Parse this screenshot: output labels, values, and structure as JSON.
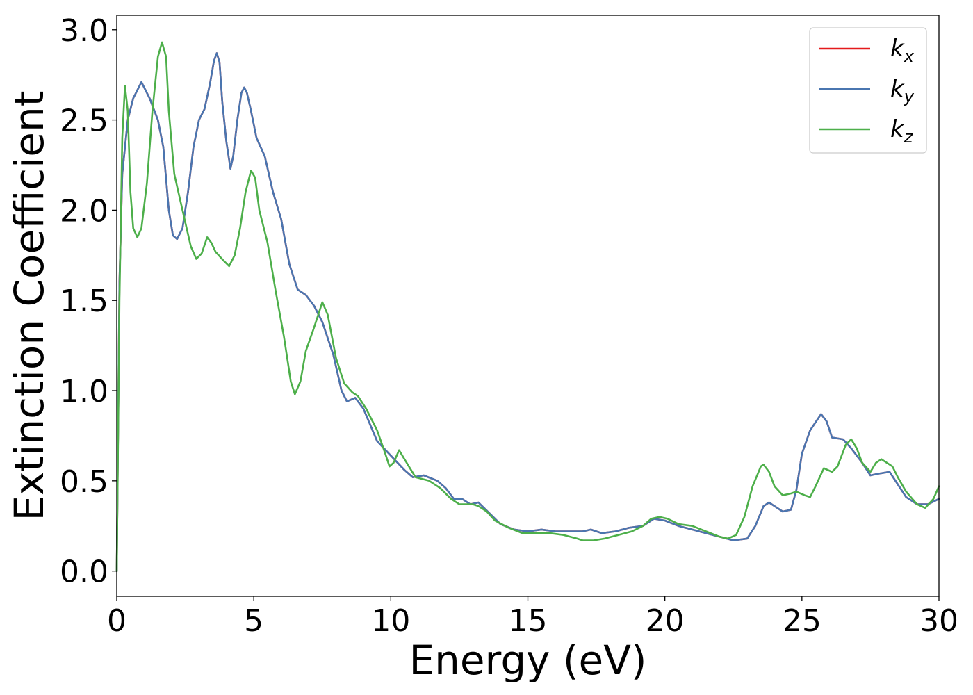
{
  "chart_data": {
    "type": "line",
    "title": "",
    "xlabel": "Energy (eV)",
    "ylabel": "Extinction Coefficient",
    "xlim": [
      0,
      30
    ],
    "ylim": [
      -0.14,
      3.08
    ],
    "xticks": [
      0,
      5,
      10,
      15,
      20,
      25,
      30
    ],
    "xtick_labels": [
      "0",
      "5",
      "10",
      "15",
      "20",
      "25",
      "30"
    ],
    "yticks": [
      0.0,
      0.5,
      1.0,
      1.5,
      2.0,
      2.5,
      3.0
    ],
    "ytick_labels": [
      "0.0",
      "0.5",
      "1.0",
      "1.5",
      "2.0",
      "2.5",
      "3.0"
    ],
    "grid": false,
    "legend_position": "top-right",
    "series": [
      {
        "name": "k",
        "subscript": "x",
        "color": "#e41a1c",
        "points": [
          [
            0,
            0
          ],
          [
            0.1,
            1.6
          ],
          [
            0.2,
            2.2
          ],
          [
            0.4,
            2.5
          ],
          [
            0.6,
            2.62
          ],
          [
            0.9,
            2.71
          ],
          [
            1.2,
            2.62
          ],
          [
            1.5,
            2.5
          ],
          [
            1.7,
            2.35
          ],
          [
            1.9,
            2.0
          ],
          [
            2.05,
            1.86
          ],
          [
            2.2,
            1.84
          ],
          [
            2.4,
            1.9
          ],
          [
            2.6,
            2.1
          ],
          [
            2.8,
            2.35
          ],
          [
            3.0,
            2.5
          ],
          [
            3.2,
            2.56
          ],
          [
            3.4,
            2.7
          ],
          [
            3.55,
            2.83
          ],
          [
            3.65,
            2.87
          ],
          [
            3.75,
            2.82
          ],
          [
            3.85,
            2.6
          ],
          [
            4.0,
            2.38
          ],
          [
            4.15,
            2.23
          ],
          [
            4.25,
            2.3
          ],
          [
            4.4,
            2.5
          ],
          [
            4.55,
            2.65
          ],
          [
            4.65,
            2.68
          ],
          [
            4.75,
            2.65
          ],
          [
            4.9,
            2.55
          ],
          [
            5.1,
            2.4
          ],
          [
            5.4,
            2.3
          ],
          [
            5.7,
            2.1
          ],
          [
            6.0,
            1.95
          ],
          [
            6.3,
            1.7
          ],
          [
            6.6,
            1.56
          ],
          [
            6.9,
            1.53
          ],
          [
            7.2,
            1.47
          ],
          [
            7.5,
            1.38
          ],
          [
            7.9,
            1.2
          ],
          [
            8.2,
            1.0
          ],
          [
            8.4,
            0.94
          ],
          [
            8.7,
            0.96
          ],
          [
            9.0,
            0.9
          ],
          [
            9.5,
            0.72
          ],
          [
            10.0,
            0.64
          ],
          [
            10.5,
            0.56
          ],
          [
            10.8,
            0.52
          ],
          [
            11.2,
            0.53
          ],
          [
            11.7,
            0.5
          ],
          [
            12.0,
            0.46
          ],
          [
            12.3,
            0.4
          ],
          [
            12.6,
            0.4
          ],
          [
            12.9,
            0.37
          ],
          [
            13.2,
            0.38
          ],
          [
            13.6,
            0.32
          ],
          [
            14.0,
            0.26
          ],
          [
            14.5,
            0.23
          ],
          [
            15.0,
            0.22
          ],
          [
            15.5,
            0.23
          ],
          [
            16.0,
            0.22
          ],
          [
            16.5,
            0.22
          ],
          [
            17.0,
            0.22
          ],
          [
            17.3,
            0.23
          ],
          [
            17.7,
            0.21
          ],
          [
            18.2,
            0.22
          ],
          [
            18.7,
            0.24
          ],
          [
            19.2,
            0.25
          ],
          [
            19.6,
            0.29
          ],
          [
            20.0,
            0.28
          ],
          [
            20.5,
            0.25
          ],
          [
            21.0,
            0.23
          ],
          [
            21.5,
            0.21
          ],
          [
            22.0,
            0.19
          ],
          [
            22.5,
            0.17
          ],
          [
            23.0,
            0.18
          ],
          [
            23.3,
            0.25
          ],
          [
            23.6,
            0.36
          ],
          [
            23.8,
            0.38
          ],
          [
            24.0,
            0.36
          ],
          [
            24.3,
            0.33
          ],
          [
            24.6,
            0.34
          ],
          [
            24.8,
            0.45
          ],
          [
            25.0,
            0.65
          ],
          [
            25.3,
            0.78
          ],
          [
            25.7,
            0.87
          ],
          [
            25.9,
            0.83
          ],
          [
            26.1,
            0.74
          ],
          [
            26.5,
            0.73
          ],
          [
            26.8,
            0.68
          ],
          [
            27.2,
            0.6
          ],
          [
            27.5,
            0.53
          ],
          [
            27.8,
            0.54
          ],
          [
            28.2,
            0.55
          ],
          [
            28.5,
            0.48
          ],
          [
            28.8,
            0.41
          ],
          [
            29.2,
            0.37
          ],
          [
            29.6,
            0.37
          ],
          [
            30.0,
            0.4
          ]
        ]
      },
      {
        "name": "k",
        "subscript": "y",
        "color": "#4a76b0",
        "points": [
          [
            0,
            0
          ],
          [
            0.1,
            1.6
          ],
          [
            0.2,
            2.2
          ],
          [
            0.4,
            2.5
          ],
          [
            0.6,
            2.62
          ],
          [
            0.9,
            2.71
          ],
          [
            1.2,
            2.62
          ],
          [
            1.5,
            2.5
          ],
          [
            1.7,
            2.35
          ],
          [
            1.9,
            2.0
          ],
          [
            2.05,
            1.86
          ],
          [
            2.2,
            1.84
          ],
          [
            2.4,
            1.9
          ],
          [
            2.6,
            2.1
          ],
          [
            2.8,
            2.35
          ],
          [
            3.0,
            2.5
          ],
          [
            3.2,
            2.56
          ],
          [
            3.4,
            2.7
          ],
          [
            3.55,
            2.83
          ],
          [
            3.65,
            2.87
          ],
          [
            3.75,
            2.82
          ],
          [
            3.85,
            2.6
          ],
          [
            4.0,
            2.38
          ],
          [
            4.15,
            2.23
          ],
          [
            4.25,
            2.3
          ],
          [
            4.4,
            2.5
          ],
          [
            4.55,
            2.65
          ],
          [
            4.65,
            2.68
          ],
          [
            4.75,
            2.65
          ],
          [
            4.9,
            2.55
          ],
          [
            5.1,
            2.4
          ],
          [
            5.4,
            2.3
          ],
          [
            5.7,
            2.1
          ],
          [
            6.0,
            1.95
          ],
          [
            6.3,
            1.7
          ],
          [
            6.6,
            1.56
          ],
          [
            6.9,
            1.53
          ],
          [
            7.2,
            1.47
          ],
          [
            7.5,
            1.38
          ],
          [
            7.9,
            1.2
          ],
          [
            8.2,
            1.0
          ],
          [
            8.4,
            0.94
          ],
          [
            8.7,
            0.96
          ],
          [
            9.0,
            0.9
          ],
          [
            9.5,
            0.72
          ],
          [
            10.0,
            0.64
          ],
          [
            10.5,
            0.56
          ],
          [
            10.8,
            0.52
          ],
          [
            11.2,
            0.53
          ],
          [
            11.7,
            0.5
          ],
          [
            12.0,
            0.46
          ],
          [
            12.3,
            0.4
          ],
          [
            12.6,
            0.4
          ],
          [
            12.9,
            0.37
          ],
          [
            13.2,
            0.38
          ],
          [
            13.6,
            0.32
          ],
          [
            14.0,
            0.26
          ],
          [
            14.5,
            0.23
          ],
          [
            15.0,
            0.22
          ],
          [
            15.5,
            0.23
          ],
          [
            16.0,
            0.22
          ],
          [
            16.5,
            0.22
          ],
          [
            17.0,
            0.22
          ],
          [
            17.3,
            0.23
          ],
          [
            17.7,
            0.21
          ],
          [
            18.2,
            0.22
          ],
          [
            18.7,
            0.24
          ],
          [
            19.2,
            0.25
          ],
          [
            19.6,
            0.29
          ],
          [
            20.0,
            0.28
          ],
          [
            20.5,
            0.25
          ],
          [
            21.0,
            0.23
          ],
          [
            21.5,
            0.21
          ],
          [
            22.0,
            0.19
          ],
          [
            22.5,
            0.17
          ],
          [
            23.0,
            0.18
          ],
          [
            23.3,
            0.25
          ],
          [
            23.6,
            0.36
          ],
          [
            23.8,
            0.38
          ],
          [
            24.0,
            0.36
          ],
          [
            24.3,
            0.33
          ],
          [
            24.6,
            0.34
          ],
          [
            24.8,
            0.45
          ],
          [
            25.0,
            0.65
          ],
          [
            25.3,
            0.78
          ],
          [
            25.7,
            0.87
          ],
          [
            25.9,
            0.83
          ],
          [
            26.1,
            0.74
          ],
          [
            26.5,
            0.73
          ],
          [
            26.8,
            0.68
          ],
          [
            27.2,
            0.6
          ],
          [
            27.5,
            0.53
          ],
          [
            27.8,
            0.54
          ],
          [
            28.2,
            0.55
          ],
          [
            28.5,
            0.48
          ],
          [
            28.8,
            0.41
          ],
          [
            29.2,
            0.37
          ],
          [
            29.6,
            0.37
          ],
          [
            30.0,
            0.4
          ]
        ]
      },
      {
        "name": "k",
        "subscript": "z",
        "color": "#4daf4a",
        "points": [
          [
            0,
            0
          ],
          [
            0.1,
            1.5
          ],
          [
            0.2,
            2.4
          ],
          [
            0.3,
            2.69
          ],
          [
            0.4,
            2.55
          ],
          [
            0.5,
            2.1
          ],
          [
            0.6,
            1.9
          ],
          [
            0.75,
            1.85
          ],
          [
            0.9,
            1.9
          ],
          [
            1.1,
            2.15
          ],
          [
            1.3,
            2.55
          ],
          [
            1.5,
            2.85
          ],
          [
            1.65,
            2.93
          ],
          [
            1.8,
            2.85
          ],
          [
            1.9,
            2.55
          ],
          [
            2.1,
            2.2
          ],
          [
            2.4,
            2.0
          ],
          [
            2.7,
            1.8
          ],
          [
            2.9,
            1.73
          ],
          [
            3.1,
            1.76
          ],
          [
            3.3,
            1.85
          ],
          [
            3.45,
            1.82
          ],
          [
            3.6,
            1.77
          ],
          [
            3.9,
            1.72
          ],
          [
            4.1,
            1.69
          ],
          [
            4.3,
            1.75
          ],
          [
            4.5,
            1.9
          ],
          [
            4.7,
            2.1
          ],
          [
            4.9,
            2.22
          ],
          [
            5.05,
            2.18
          ],
          [
            5.2,
            2.0
          ],
          [
            5.5,
            1.82
          ],
          [
            5.8,
            1.55
          ],
          [
            6.1,
            1.3
          ],
          [
            6.35,
            1.05
          ],
          [
            6.5,
            0.98
          ],
          [
            6.7,
            1.05
          ],
          [
            6.9,
            1.22
          ],
          [
            7.2,
            1.35
          ],
          [
            7.5,
            1.49
          ],
          [
            7.7,
            1.42
          ],
          [
            8.0,
            1.18
          ],
          [
            8.3,
            1.04
          ],
          [
            8.6,
            0.99
          ],
          [
            8.8,
            0.97
          ],
          [
            9.1,
            0.9
          ],
          [
            9.5,
            0.78
          ],
          [
            9.8,
            0.65
          ],
          [
            9.95,
            0.58
          ],
          [
            10.1,
            0.6
          ],
          [
            10.3,
            0.67
          ],
          [
            10.5,
            0.62
          ],
          [
            10.9,
            0.52
          ],
          [
            11.4,
            0.5
          ],
          [
            11.8,
            0.46
          ],
          [
            12.2,
            0.4
          ],
          [
            12.5,
            0.37
          ],
          [
            13.0,
            0.37
          ],
          [
            13.2,
            0.36
          ],
          [
            13.5,
            0.33
          ],
          [
            13.8,
            0.28
          ],
          [
            14.3,
            0.24
          ],
          [
            14.8,
            0.21
          ],
          [
            15.3,
            0.21
          ],
          [
            15.8,
            0.21
          ],
          [
            16.3,
            0.2
          ],
          [
            16.8,
            0.18
          ],
          [
            17.0,
            0.17
          ],
          [
            17.4,
            0.17
          ],
          [
            17.8,
            0.18
          ],
          [
            18.3,
            0.2
          ],
          [
            18.8,
            0.22
          ],
          [
            19.2,
            0.25
          ],
          [
            19.5,
            0.29
          ],
          [
            19.8,
            0.3
          ],
          [
            20.1,
            0.29
          ],
          [
            20.5,
            0.26
          ],
          [
            21.0,
            0.25
          ],
          [
            21.5,
            0.22
          ],
          [
            22.0,
            0.19
          ],
          [
            22.3,
            0.18
          ],
          [
            22.6,
            0.2
          ],
          [
            22.9,
            0.3
          ],
          [
            23.2,
            0.47
          ],
          [
            23.5,
            0.58
          ],
          [
            23.6,
            0.59
          ],
          [
            23.8,
            0.55
          ],
          [
            24.0,
            0.47
          ],
          [
            24.3,
            0.42
          ],
          [
            24.6,
            0.43
          ],
          [
            24.8,
            0.44
          ],
          [
            25.1,
            0.42
          ],
          [
            25.3,
            0.41
          ],
          [
            25.5,
            0.47
          ],
          [
            25.8,
            0.57
          ],
          [
            26.1,
            0.55
          ],
          [
            26.3,
            0.58
          ],
          [
            26.6,
            0.7
          ],
          [
            26.8,
            0.73
          ],
          [
            27.0,
            0.68
          ],
          [
            27.2,
            0.6
          ],
          [
            27.5,
            0.55
          ],
          [
            27.7,
            0.6
          ],
          [
            27.9,
            0.62
          ],
          [
            28.3,
            0.58
          ],
          [
            28.5,
            0.52
          ],
          [
            28.8,
            0.44
          ],
          [
            29.2,
            0.37
          ],
          [
            29.5,
            0.35
          ],
          [
            29.8,
            0.4
          ],
          [
            30.0,
            0.47
          ]
        ]
      }
    ]
  }
}
